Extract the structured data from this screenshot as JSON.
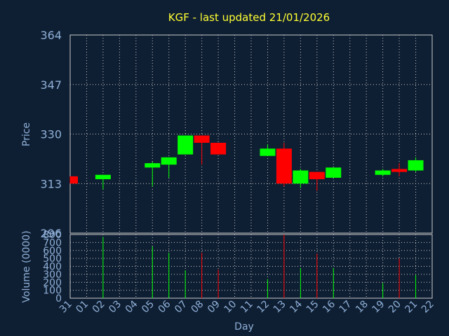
{
  "chart_data": [
    {
      "type": "candlestick",
      "title": "KGF - last updated 21/01/2026",
      "ylabel": "Price",
      "ylim": [
        296,
        364
      ],
      "yticks": [
        296,
        313,
        330,
        347,
        364
      ],
      "x_ticks": [
        "31",
        "01",
        "02",
        "03",
        "04",
        "05",
        "06",
        "07",
        "08",
        "09",
        "10",
        "11",
        "12",
        "13",
        "14",
        "15",
        "16",
        "17",
        "18",
        "19",
        "20",
        "21",
        "22"
      ],
      "candles": [
        {
          "x": "31",
          "open": 315.5,
          "close": 313.0,
          "high": 315.5,
          "low": 313.0
        },
        {
          "x": "02",
          "open": 314.5,
          "close": 316.0,
          "high": 316.0,
          "low": 311.0
        },
        {
          "x": "05",
          "open": 318.5,
          "close": 320.0,
          "high": 320.5,
          "low": 312.0
        },
        {
          "x": "06",
          "open": 319.5,
          "close": 322.0,
          "high": 322.0,
          "low": 315.0
        },
        {
          "x": "07",
          "open": 323.0,
          "close": 329.5,
          "high": 329.5,
          "low": 323.0
        },
        {
          "x": "08",
          "open": 329.5,
          "close": 327.0,
          "high": 329.5,
          "low": 319.5
        },
        {
          "x": "09",
          "open": 327.0,
          "close": 323.0,
          "high": 327.0,
          "low": 323.0
        },
        {
          "x": "12",
          "open": 322.5,
          "close": 325.0,
          "high": 326.5,
          "low": 322.5
        },
        {
          "x": "13",
          "open": 325.0,
          "close": 313.0,
          "high": 327.0,
          "low": 312.0
        },
        {
          "x": "14",
          "open": 313.0,
          "close": 317.5,
          "high": 318.0,
          "low": 311.5
        },
        {
          "x": "15",
          "open": 317.0,
          "close": 314.5,
          "high": 317.0,
          "low": 310.5
        },
        {
          "x": "16",
          "open": 315.0,
          "close": 318.5,
          "high": 318.5,
          "low": 315.0
        },
        {
          "x": "19",
          "open": 316.0,
          "close": 317.5,
          "high": 318.0,
          "low": 315.5
        },
        {
          "x": "20",
          "open": 318.0,
          "close": 317.0,
          "high": 320.0,
          "low": 315.5
        },
        {
          "x": "21",
          "open": 317.5,
          "close": 321.0,
          "high": 322.0,
          "low": 317.0
        }
      ],
      "colors": {
        "up": "#00ff00",
        "down": "#ff0000"
      }
    },
    {
      "type": "bar",
      "ylabel": "Volume (0000)",
      "xlabel": "Day",
      "ylim": [
        0,
        800
      ],
      "yticks": [
        0,
        100,
        200,
        300,
        400,
        500,
        600,
        700,
        800
      ],
      "x_ticks": [
        "31",
        "01",
        "02",
        "03",
        "04",
        "05",
        "06",
        "07",
        "08",
        "09",
        "10",
        "11",
        "12",
        "13",
        "14",
        "15",
        "16",
        "17",
        "18",
        "19",
        "20",
        "21",
        "22"
      ],
      "bars": [
        {
          "x": "02",
          "value": 770,
          "direction": "up"
        },
        {
          "x": "05",
          "value": 650,
          "direction": "up"
        },
        {
          "x": "06",
          "value": 570,
          "direction": "up"
        },
        {
          "x": "07",
          "value": 350,
          "direction": "up"
        },
        {
          "x": "08",
          "value": 570,
          "direction": "down"
        },
        {
          "x": "09",
          "value": 360,
          "direction": "down"
        },
        {
          "x": "12",
          "value": 240,
          "direction": "up"
        },
        {
          "x": "13",
          "value": 800,
          "direction": "down"
        },
        {
          "x": "14",
          "value": 380,
          "direction": "up"
        },
        {
          "x": "15",
          "value": 560,
          "direction": "down"
        },
        {
          "x": "16",
          "value": 380,
          "direction": "up"
        },
        {
          "x": "19",
          "value": 190,
          "direction": "up"
        },
        {
          "x": "20",
          "value": 500,
          "direction": "down"
        },
        {
          "x": "21",
          "value": 290,
          "direction": "up"
        }
      ]
    }
  ]
}
